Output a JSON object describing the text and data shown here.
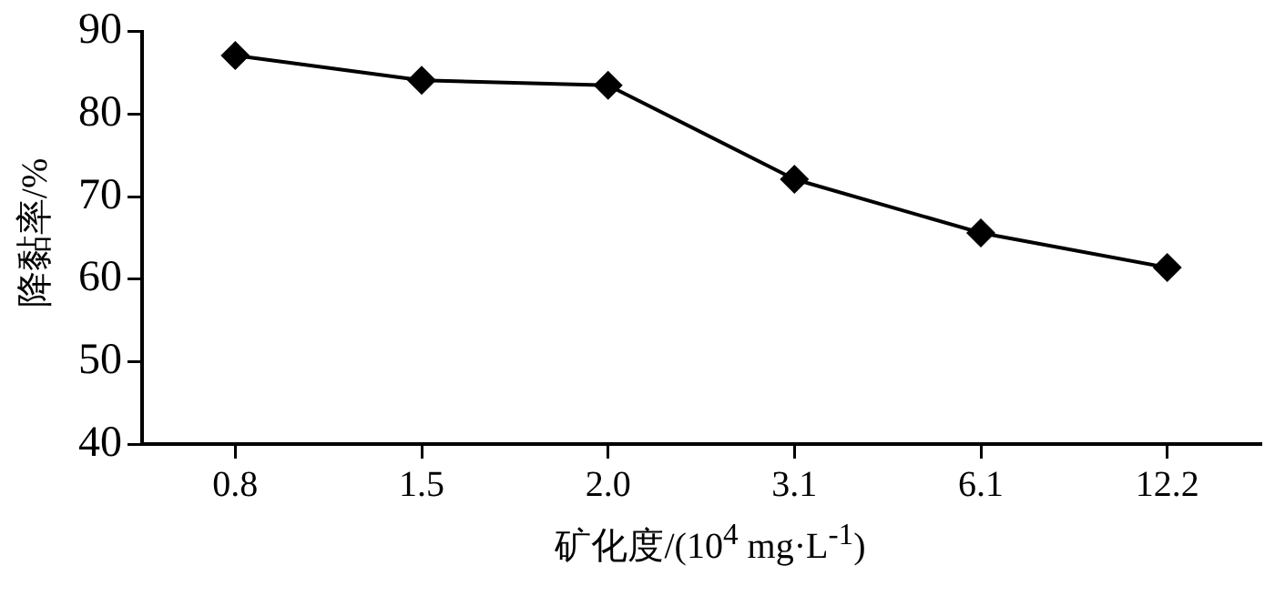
{
  "chart_data": {
    "type": "line",
    "xlabel": "矿化度/(10$^{4}$ mg·L$^{-1}$)",
    "ylabel": "降黏率/%",
    "categories": [
      "0.8",
      "1.5",
      "2.0",
      "3.1",
      "6.1",
      "12.2"
    ],
    "series": [
      {
        "color": "#000000",
        "values": [
          87.1,
          84.1,
          83.5,
          72.1,
          65.6,
          61.4
        ]
      }
    ],
    "ylim": [
      40,
      90
    ],
    "yticks": [
      40,
      50,
      60,
      70,
      80,
      90
    ],
    "grid": false,
    "legend": false,
    "marker": "diamond",
    "line_style": "solid"
  }
}
